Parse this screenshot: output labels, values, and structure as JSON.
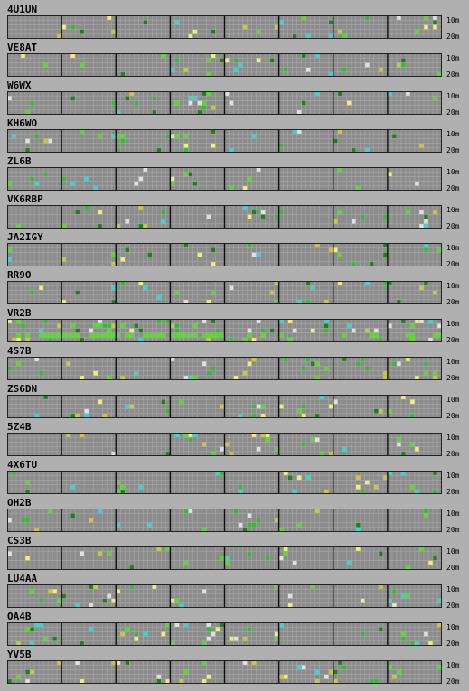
{
  "colors": {
    "background": "#b0b0b0",
    "grid_fill": "#8c8c8c",
    "grid_line": "#a8a8a8",
    "grid_border": "#222222",
    "hour_divider": "#111111",
    "cyan": "#33d6d0",
    "yellow_green": "#c8c83a",
    "light_yellow": "#f0f070",
    "green": "#33bb33",
    "dark_green": "#1f7f1f",
    "bright_green": "#55dd22",
    "white": "#e0e0e0"
  },
  "band_labels": {
    "top": "10m",
    "bottom": "20m"
  },
  "grid": {
    "hours": 8,
    "columns_per_hour": 12,
    "rows": 5
  },
  "stations": [
    {
      "call": "4U1UN"
    },
    {
      "call": "VE8AT"
    },
    {
      "call": "W6WX"
    },
    {
      "call": "KH6WO"
    },
    {
      "call": "ZL6B"
    },
    {
      "call": "VK6RBP"
    },
    {
      "call": "JA2IGY"
    },
    {
      "call": "RR9O"
    },
    {
      "call": "VR2B"
    },
    {
      "call": "4S7B"
    },
    {
      "call": "ZS6DN"
    },
    {
      "call": "5Z4B"
    },
    {
      "call": "4X6TU"
    },
    {
      "call": "OH2B"
    },
    {
      "call": "CS3B"
    },
    {
      "call": "LU4AA"
    },
    {
      "call": "OA4B"
    },
    {
      "call": "YV5B"
    }
  ]
}
